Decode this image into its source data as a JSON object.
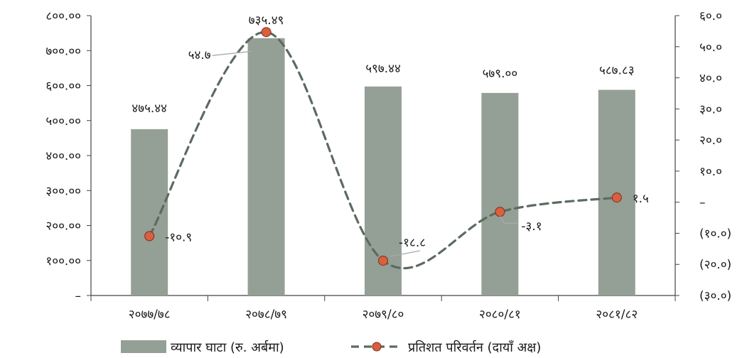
{
  "chart_data": {
    "type": "bar",
    "categories": [
      "२०७७/७८",
      "२०७८/७९",
      "२०७९/८०",
      "२०८०/८१",
      "२०८१/८२"
    ],
    "series": [
      {
        "name": "व्यापार घाटा (रु. अर्बमा)",
        "type": "bar",
        "axis": "left",
        "values": [
          475.44,
          735.49,
          597.44,
          579.0,
          587.83
        ],
        "labels": [
          "४७५.४४",
          "७३५.४९",
          "५९७.४४",
          "५७९.००",
          "५८७.८३"
        ],
        "color": "#949f95"
      },
      {
        "name": "प्रतिशत परिवर्तन (दायाँ अक्ष)",
        "type": "line",
        "axis": "right",
        "values": [
          -10.9,
          54.7,
          -18.8,
          -3.1,
          1.5
        ],
        "labels": [
          "-१०.९",
          "५४.७",
          "-१८.८",
          "-३.१",
          "१.५"
        ],
        "color": "#5c6b5f",
        "marker_color": "#d9603f",
        "dashed": true
      }
    ],
    "y_left": {
      "lim": [
        0,
        800
      ],
      "ticks": [
        0,
        100,
        200,
        300,
        400,
        500,
        600,
        700,
        800
      ],
      "tick_labels": [
        "–",
        "१००.००",
        "२००.००",
        "३००.००",
        "४००.००",
        "५००.००",
        "६००.००",
        "७००.००",
        "८००.००"
      ]
    },
    "y_right": {
      "lim": [
        -30,
        60
      ],
      "ticks": [
        60,
        50,
        40,
        30,
        20,
        10,
        0,
        -10,
        -20,
        -30
      ],
      "tick_labels": [
        "६०.०",
        "५०.०",
        "४०.०",
        "३०.०",
        "२०.०",
        "१०.०",
        "–",
        "(१०.०)",
        "(२०.०)",
        "(३०.०)"
      ]
    },
    "title": "",
    "xlabel": "",
    "ylabel": "",
    "grid": false,
    "legend_position": "bottom"
  }
}
